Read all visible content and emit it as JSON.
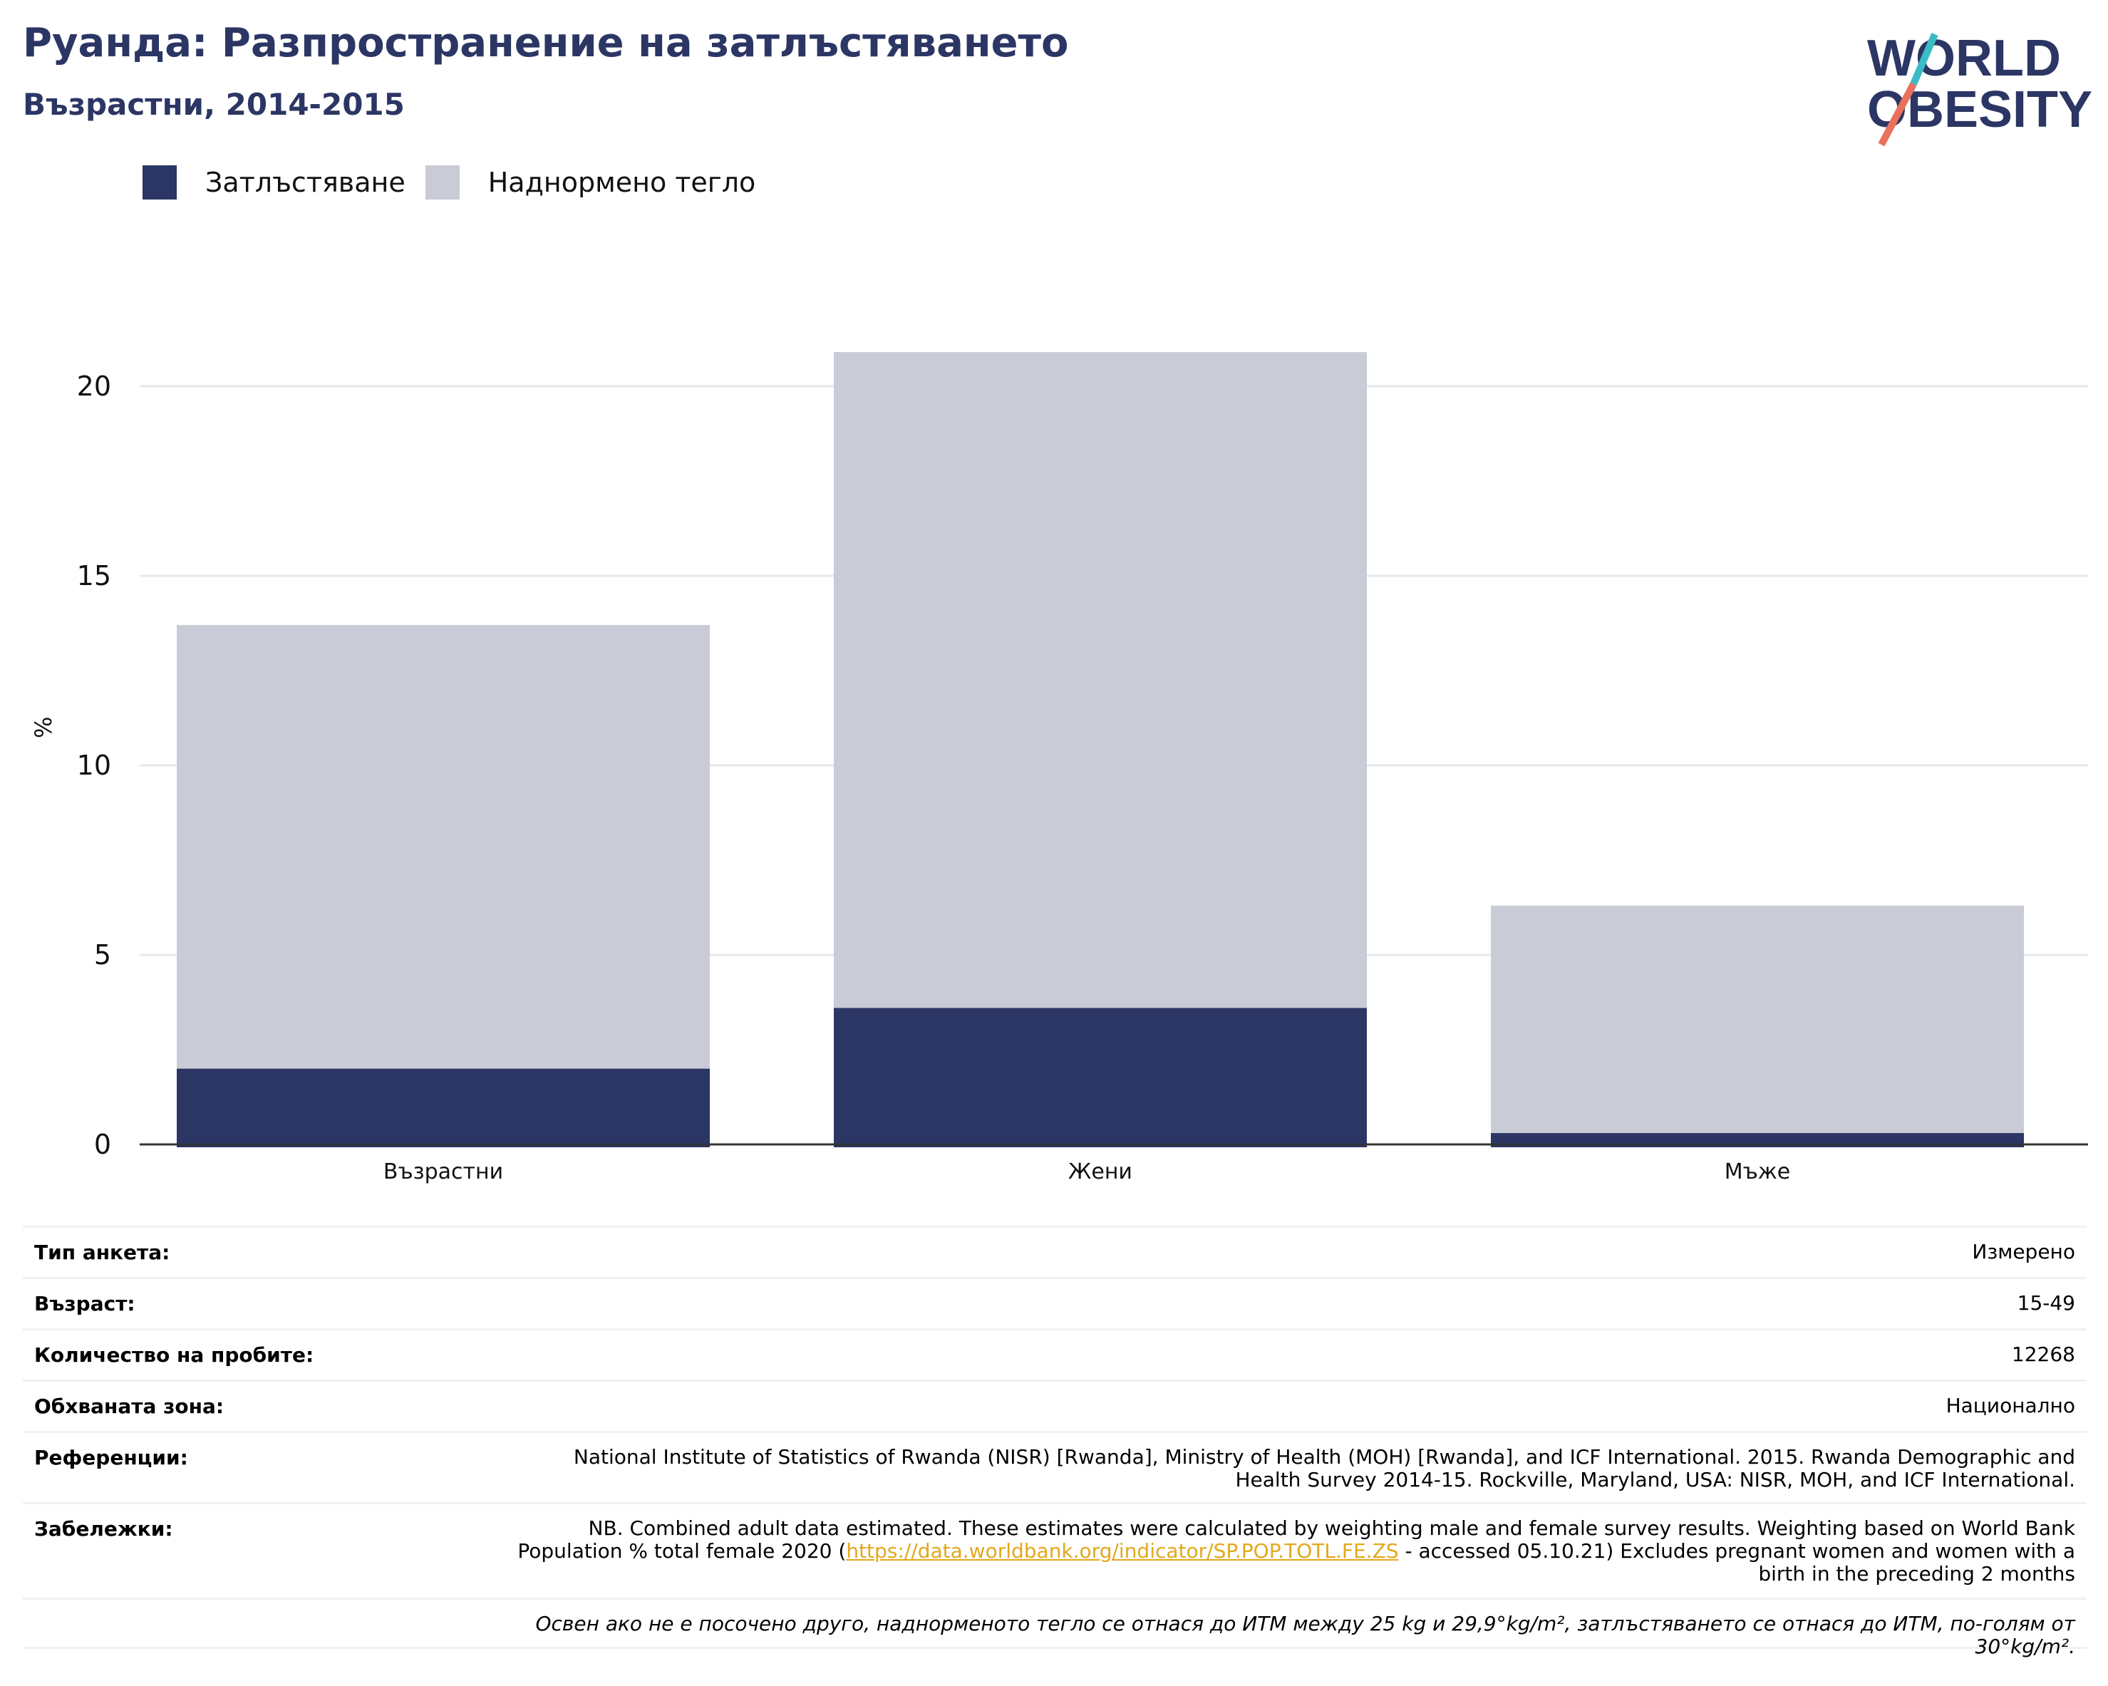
{
  "header": {
    "title": "Руанда: Разпространение на затлъстяването",
    "subtitle": "Възрастни, 2014-2015"
  },
  "logo": {
    "line1": "WORLD",
    "line2": "OBESITY"
  },
  "colors": {
    "obesity": "#2b3664",
    "overweight": "#c9cbd6",
    "accent_teal": "#3bbcc4",
    "accent_coral": "#e8705c"
  },
  "chart_data": {
    "type": "bar",
    "stacked": true,
    "categories": [
      "Възрастни",
      "Жени",
      "Мъже"
    ],
    "series": [
      {
        "name": "Затлъстяване",
        "values": [
          2.0,
          3.6,
          0.3
        ]
      },
      {
        "name": "Наднормено тегло",
        "values": [
          11.7,
          17.3,
          6.0
        ]
      }
    ],
    "ylabel": "%",
    "ylim": [
      0,
      22
    ],
    "yticks": [
      0,
      5,
      10,
      15,
      20
    ],
    "grid": true,
    "legend": "top-left"
  },
  "meta": {
    "survey_type": {
      "label": "Тип анкета:",
      "value": "Измерено"
    },
    "age": {
      "label": "Възраст:",
      "value": "15-49"
    },
    "sample": {
      "label": "Количество на пробите:",
      "value": "12268"
    },
    "area": {
      "label": "Обхваната зона:",
      "value": "Национално"
    },
    "references": {
      "label": "Референции:",
      "value": "National Institute of Statistics of Rwanda (NISR) [Rwanda], Ministry of Health (MOH) [Rwanda], and ICF International. 2015. Rwanda Demographic and Health Survey 2014-15. Rockville, Maryland, USA: NISR, MOH, and ICF International."
    },
    "notes": {
      "label": "Забележки:",
      "before": "NB. Combined adult data estimated. These estimates were calculated by weighting male and female survey results. Weighting based on World Bank Population % total female 2020 (",
      "link": "https://data.worldbank.org/indicator/SP.POP.TOTL.FE.ZS",
      "after": " - accessed 05.10.21) Excludes pregnant women and women with a birth in the preceding 2 months"
    },
    "footnote": "Освен ако не е посочено друго, наднорменото тегло се отнася до ИТМ между 25 kg и 29,9°kg/m², затлъстяването се отнася до ИТМ, по-голям от 30°kg/m²."
  }
}
